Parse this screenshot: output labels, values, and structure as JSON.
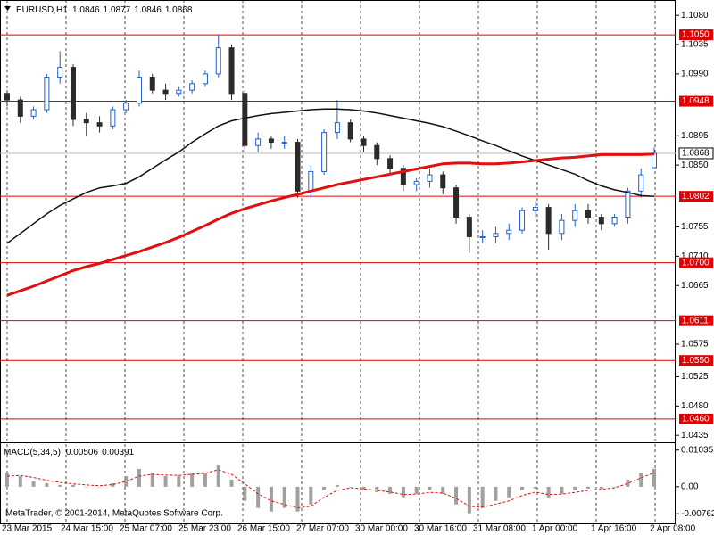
{
  "chart_data": [
    {
      "type": "candlestick",
      "title": "EURUSD,H1",
      "title_values": [
        1.0846,
        1.0877,
        1.0846,
        1.0868
      ],
      "up_color": "#1f5fd0",
      "down_color": "#2b2b2b",
      "open": [
        1.096,
        1.095,
        1.0925,
        1.0935,
        1.0985,
        1.1,
        1.092,
        1.0915,
        1.091,
        1.0935,
        1.0945,
        1.0985,
        1.0965,
        1.096,
        1.0965,
        1.0975,
        1.099,
        1.103,
        1.096,
        1.088,
        1.089,
        1.0885,
        1.0885,
        1.081,
        1.084,
        1.09,
        1.0915,
        1.089,
        1.088,
        1.086,
        1.0845,
        1.082,
        1.0825,
        1.0835,
        1.0815,
        1.077,
        1.074,
        1.074,
        1.0745,
        1.075,
        1.078,
        1.0785,
        1.0745,
        1.0765,
        1.078,
        1.077,
        1.076,
        1.077,
        1.081,
        1.0846
      ],
      "high": [
        1.0965,
        1.0955,
        1.094,
        1.099,
        1.1025,
        1.1005,
        1.093,
        1.0925,
        1.094,
        1.095,
        1.0995,
        1.099,
        1.0975,
        1.097,
        1.098,
        1.0995,
        1.105,
        1.1035,
        1.0965,
        1.09,
        1.0895,
        1.0895,
        1.089,
        1.085,
        1.0905,
        1.095,
        1.092,
        1.0895,
        1.0885,
        1.0865,
        1.085,
        1.083,
        1.0845,
        1.084,
        1.082,
        1.0775,
        1.075,
        1.0755,
        1.076,
        1.0785,
        1.0795,
        1.079,
        1.0775,
        1.079,
        1.079,
        1.0775,
        1.0775,
        1.0815,
        1.0845,
        1.0877
      ],
      "low": [
        1.094,
        1.0915,
        1.092,
        1.093,
        1.0975,
        1.091,
        1.0895,
        1.09,
        1.0905,
        1.093,
        1.094,
        1.096,
        1.095,
        1.0955,
        1.096,
        1.097,
        1.0985,
        1.095,
        1.087,
        1.087,
        1.0875,
        1.0875,
        1.08,
        1.08,
        1.0835,
        1.089,
        1.0885,
        1.087,
        1.085,
        1.0835,
        1.081,
        1.081,
        1.0815,
        1.0805,
        1.076,
        1.0715,
        1.073,
        1.073,
        1.0735,
        1.0745,
        1.077,
        1.072,
        1.0735,
        1.0755,
        1.076,
        1.075,
        1.0755,
        1.076,
        1.08,
        1.0846
      ],
      "close": [
        1.095,
        1.0925,
        1.0935,
        1.0985,
        1.1,
        1.092,
        1.0915,
        1.091,
        1.0935,
        1.0945,
        1.0985,
        1.0965,
        1.096,
        1.0965,
        1.0975,
        1.099,
        1.103,
        1.096,
        1.088,
        1.089,
        1.0885,
        1.0885,
        1.081,
        1.084,
        1.09,
        1.0915,
        1.089,
        1.088,
        1.086,
        1.0845,
        1.082,
        1.0825,
        1.0835,
        1.0815,
        1.077,
        1.074,
        1.074,
        1.0745,
        1.075,
        1.078,
        1.0785,
        1.0745,
        1.0765,
        1.078,
        1.077,
        1.076,
        1.077,
        1.081,
        1.0835,
        1.0868
      ],
      "series": [
        {
          "color": "#111111",
          "width": 1.5,
          "values": [
            1.073,
            1.0745,
            1.076,
            1.0775,
            1.0788,
            1.0798,
            1.0808,
            1.0815,
            1.0818,
            1.0822,
            1.0832,
            1.0845,
            1.0858,
            1.087,
            1.0885,
            1.0898,
            1.091,
            1.0918,
            1.0922,
            1.0926,
            1.0929,
            1.0931,
            1.0933,
            1.0935,
            1.0936,
            1.0936,
            1.0935,
            1.0933,
            1.093,
            1.0926,
            1.0922,
            1.0918,
            1.0914,
            1.0909,
            1.0902,
            1.0895,
            1.0887,
            1.088,
            1.0872,
            1.0864,
            1.0857,
            1.085,
            1.0843,
            1.0836,
            1.0826,
            1.0818,
            1.0812,
            1.0808,
            1.0803,
            1.0802
          ]
        },
        {
          "color": "#e01010",
          "width": 3,
          "values": [
            1.065,
            1.0657,
            1.0664,
            1.0672,
            1.068,
            1.0688,
            1.0694,
            1.0699,
            1.0705,
            1.0711,
            1.0717,
            1.0724,
            1.0731,
            1.0739,
            1.0748,
            1.0757,
            1.0767,
            1.0776,
            1.0783,
            1.0789,
            1.0795,
            1.08,
            1.0805,
            1.081,
            1.0815,
            1.082,
            1.0824,
            1.0828,
            1.0832,
            1.0836,
            1.084,
            1.0844,
            1.0848,
            1.0852,
            1.0853,
            1.0853,
            1.0852,
            1.0852,
            1.0853,
            1.0855,
            1.0857,
            1.0859,
            1.0861,
            1.0862,
            1.0864,
            1.0866,
            1.0866,
            1.0866,
            1.0866,
            1.0867
          ]
        }
      ],
      "levels": [
        {
          "value": 1.105,
          "label": "1.1050"
        },
        {
          "value": 1.0948,
          "label": "1.0948"
        },
        {
          "value": 1.0802,
          "label": "1.0802"
        },
        {
          "value": 1.07,
          "label": "1.0700"
        },
        {
          "value": 1.0611,
          "label": "1.0611"
        },
        {
          "value": 1.055,
          "label": "1.0550"
        },
        {
          "value": 1.046,
          "label": "1.0460"
        }
      ],
      "level_color": "#e00000",
      "current_price": {
        "value": 1.0868,
        "label": "1.0868"
      },
      "ylim": [
        1.04284,
        1.11035
      ],
      "yticks": [
        {
          "value": 1.108,
          "label": "1.1080"
        },
        {
          "value": 1.1035,
          "label": "1.1035"
        },
        {
          "value": 1.099,
          "label": "1.0990"
        },
        {
          "value": 1.0895,
          "label": "1.0895"
        },
        {
          "value": 1.085,
          "label": "1.0850"
        },
        {
          "value": 1.0755,
          "label": "1.0755"
        },
        {
          "value": 1.071,
          "label": "1.0710"
        },
        {
          "value": 1.0665,
          "label": "1.0665"
        },
        {
          "value": 1.0575,
          "label": "1.0575"
        },
        {
          "value": 1.0525,
          "label": "1.0525"
        },
        {
          "value": 1.048,
          "label": "1.0480"
        },
        {
          "value": 1.0435,
          "label": "1.0435"
        }
      ],
      "time_labels": [
        "23 Mar 2015",
        "24 Mar 15:00",
        "25 Mar 07:00",
        "25 Mar 23:00",
        "26 Mar 15:00",
        "27 Mar 07:00",
        "30 Mar 00:00",
        "30 Mar 16:00",
        "31 Mar 08:00",
        "1 Apr 00:00",
        "1 Apr 16:00",
        "2 Apr 08:00"
      ]
    },
    {
      "type": "macd",
      "title": "MACD(5,34,5)",
      "title_values": [
        0.00506,
        0.00391
      ],
      "color": "#a0a0a0",
      "signal_color": "#e01010",
      "values": [
        0.004,
        0.003,
        0.0015,
        0.001,
        0.0005,
        0.0005,
        0,
        0,
        0.001,
        0.003,
        0.005,
        0.004,
        0.003,
        0.003,
        0.004,
        0.004,
        0.006,
        0.002,
        -0.004,
        -0.006,
        -0.007,
        -0.006,
        -0.007,
        -0.005,
        -0.001,
        0.0005,
        0,
        -0.001,
        -0.0015,
        -0.002,
        -0.003,
        -0.002,
        -0.001,
        -0.002,
        -0.005,
        -0.0075,
        -0.006,
        -0.004,
        -0.003,
        -0.001,
        -0.0005,
        -0.003,
        -0.002,
        -0.001,
        -0.0005,
        -0.0005,
        0,
        0.002,
        0.004,
        0.00506
      ],
      "signal": [
        0.003,
        0.0032,
        0.0026,
        0.0018,
        0.0012,
        0.0008,
        0.0005,
        0.0003,
        0.0006,
        0.0015,
        0.003,
        0.0035,
        0.0033,
        0.0032,
        0.0035,
        0.0038,
        0.0048,
        0.0035,
        0.0008,
        -0.002,
        -0.004,
        -0.005,
        -0.006,
        -0.0055,
        -0.003,
        -0.001,
        -0.0003,
        -0.0006,
        -0.001,
        -0.0015,
        -0.0022,
        -0.0021,
        -0.0016,
        -0.0018,
        -0.0033,
        -0.0055,
        -0.0058,
        -0.0049,
        -0.004,
        -0.0025,
        -0.0015,
        -0.0022,
        -0.0021,
        -0.0016,
        -0.001,
        -0.0007,
        -0.0003,
        0.0009,
        0.0025,
        0.00391
      ],
      "ylim": [
        -0.0106,
        0.0123
      ],
      "yticks": [
        0.01035,
        {
          "value": 0,
          "label": "0.00"
        },
        -0.00762
      ]
    }
  ],
  "footer": "MetaTrader, © 2001-2014, MetaQuotes Software Corp."
}
